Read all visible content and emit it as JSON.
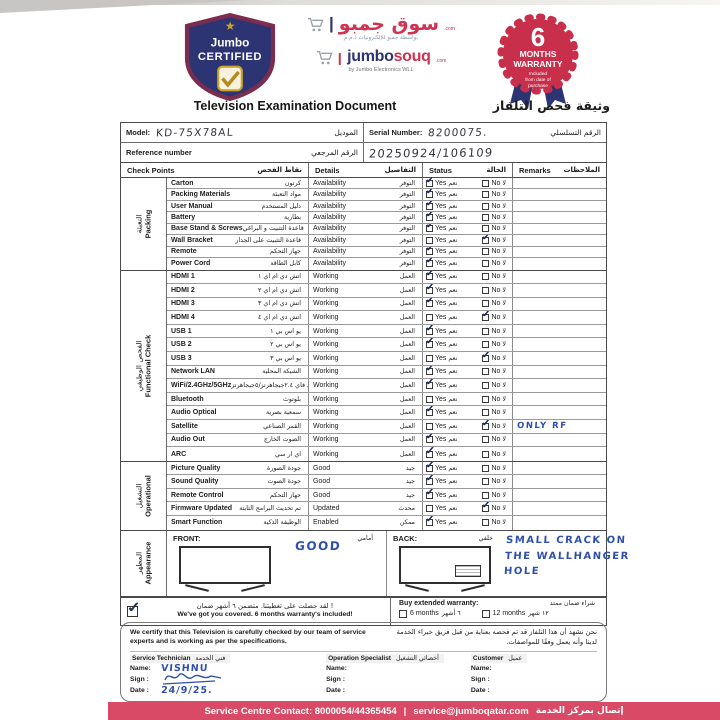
{
  "header": {
    "certified_badge": {
      "line1": "Jumbo",
      "line2": "CERTIFIED",
      "star_icon": "★",
      "check_icon": "✓"
    },
    "souq_logo": {
      "arabic": "سوق جمبو",
      "dotcom": ".com",
      "arabic_sub": "بواسطة جمبو للإلكترونيات ذ.م.م",
      "en_jumbo": "jumbo",
      "en_souq": "souq",
      "byline": "by Jumbo Electronics WLL"
    },
    "warranty_badge": {
      "number": "6",
      "line1": "MONTHS",
      "line2": "WARRANTY",
      "sub1": "Included",
      "sub2": "from date of",
      "sub3": "purchase"
    },
    "title_en": "Television Examination Document",
    "title_ar": "وثيقة فحص التلفاز"
  },
  "info": {
    "model_label_en": "Model:",
    "model_value": "KD-75X78AL",
    "model_label_ar": "الموديل",
    "serial_label_en": "Serial Number:",
    "serial_value": "8200075.",
    "serial_label_ar": "الرقم التسلسلي",
    "reference_label_en": "Reference number",
    "reference_label_ar": "الرقم المرجعي",
    "reference_value": "20250924/106109"
  },
  "table": {
    "headers": {
      "check_points_en": "Check Points",
      "check_points_ar": "نقاط الفحص",
      "details_en": "Details",
      "details_ar": "التفاصيل",
      "status_en": "Status",
      "status_ar": "الحالة",
      "remarks_en": "Remarks",
      "remarks_ar": "الملاحظات"
    },
    "status_labels": {
      "yes_en": "Yes",
      "yes_ar": "نعم",
      "no_en": "No",
      "no_ar": "لا"
    },
    "sections": [
      {
        "key": "packing",
        "name_ar": "التعبئة",
        "name_en": "Packing",
        "rh": "rh-p",
        "rows": [
          {
            "en": "Carton",
            "ar": "كرتون",
            "det_en": "Availability",
            "det_ar": "التوفر",
            "status": "yes",
            "remark": ""
          },
          {
            "en": "Packing Materials",
            "ar": "مواد التعبئة",
            "det_en": "Availability",
            "det_ar": "التوفر",
            "status": "yes",
            "remark": ""
          },
          {
            "en": "User Manual",
            "ar": "دليل المستخدم",
            "det_en": "Availability",
            "det_ar": "التوفر",
            "status": "yes",
            "remark": ""
          },
          {
            "en": "Battery",
            "ar": "بطارية",
            "det_en": "Availability",
            "det_ar": "التوفر",
            "status": "yes",
            "remark": ""
          },
          {
            "en": "Base Stand & Screws",
            "ar": "قاعدة التثبيت و البراغي",
            "det_en": "Availability",
            "det_ar": "التوفر",
            "status": "yes",
            "remark": ""
          },
          {
            "en": "Wall Bracket",
            "ar": "قاعدة التثبيت على الجدار",
            "det_en": "Availability",
            "det_ar": "التوفر",
            "status": "no",
            "remark": ""
          },
          {
            "en": "Remote",
            "ar": "جهاز التحكم",
            "det_en": "Availability",
            "det_ar": "التوفر",
            "status": "yes",
            "remark": ""
          },
          {
            "en": "Power Cord",
            "ar": "كابل الطاقة",
            "det_en": "Availability",
            "det_ar": "التوفر",
            "status": "yes",
            "remark": ""
          }
        ]
      },
      {
        "key": "functional-check",
        "name_ar": "الفحص الوظيفي",
        "name_en": "Functional Check",
        "rh": "rh-f",
        "rows": [
          {
            "en": "HDMI 1",
            "ar": "اتش دي ام اي ١",
            "det_en": "Working",
            "det_ar": "العمل",
            "status": "yes",
            "remark": ""
          },
          {
            "en": "HDMI 2",
            "ar": "اتش دي ام اي ٢",
            "det_en": "Working",
            "det_ar": "العمل",
            "status": "yes",
            "remark": ""
          },
          {
            "en": "HDMI 3",
            "ar": "اتش دي ام اي ٣",
            "det_en": "Working",
            "det_ar": "العمل",
            "status": "yes",
            "remark": ""
          },
          {
            "en": "HDMI 4",
            "ar": "اتش دي ام اي ٤",
            "det_en": "Working",
            "det_ar": "العمل",
            "status": "no",
            "remark": ""
          },
          {
            "en": "USB 1",
            "ar": "يو اس بي ١",
            "det_en": "Working",
            "det_ar": "العمل",
            "status": "yes",
            "remark": ""
          },
          {
            "en": "USB 2",
            "ar": "يو اس بي ٢",
            "det_en": "Working",
            "det_ar": "العمل",
            "status": "yes",
            "remark": ""
          },
          {
            "en": "USB 3",
            "ar": "يو اس بي ٣",
            "det_en": "Working",
            "det_ar": "العمل",
            "status": "no",
            "remark": ""
          },
          {
            "en": "Network LAN",
            "ar": "الشبكة المحلية",
            "det_en": "Working",
            "det_ar": "العمل",
            "status": "yes",
            "remark": ""
          },
          {
            "en": "WiFi/2.4GHz/5GHz",
            "ar": "الواي فاي ٢.٤جيجاهرتز/٥جيجاهرتز",
            "det_en": "Working",
            "det_ar": "العمل",
            "status": "yes",
            "remark": ""
          },
          {
            "en": "Bluetooth",
            "ar": "بلوتوث",
            "det_en": "Working",
            "det_ar": "العمل",
            "status": "none",
            "remark": ""
          },
          {
            "en": "Audio Optical",
            "ar": "سمعية بصرية",
            "det_en": "Working",
            "det_ar": "العمل",
            "status": "yes",
            "remark": ""
          },
          {
            "en": "Satellite",
            "ar": "القمر الصناعي",
            "det_en": "Working",
            "det_ar": "العمل",
            "status": "no",
            "remark": "ONLY RF"
          },
          {
            "en": "Audio Out",
            "ar": "الصوت الخارج",
            "det_en": "Working",
            "det_ar": "العمل",
            "status": "yes",
            "remark": ""
          },
          {
            "en": "ARC",
            "ar": "اي ار سي",
            "det_en": "Working",
            "det_ar": "العمل",
            "status": "yes",
            "remark": ""
          }
        ]
      },
      {
        "key": "operational",
        "name_ar": "التشغيل",
        "name_en": "Operational",
        "rh": "rh-o",
        "rows": [
          {
            "en": "Picture Quality",
            "ar": "جودة الصورة",
            "det_en": "Good",
            "det_ar": "جيد",
            "status": "yes",
            "remark": ""
          },
          {
            "en": "Sound Quality",
            "ar": "جودة الصوت",
            "det_en": "Good",
            "det_ar": "جيد",
            "status": "yes",
            "remark": ""
          },
          {
            "en": "Remote Control",
            "ar": "جهاز التحكم",
            "det_en": "Good",
            "det_ar": "جيد",
            "status": "yes",
            "remark": ""
          },
          {
            "en": "Firmware Updated",
            "ar": "تم تحديث البرامج الثابتة",
            "det_en": "Updated",
            "det_ar": "محدث",
            "status": "no",
            "remark": ""
          },
          {
            "en": "Smart Function",
            "ar": "الوظيفة الذكية",
            "det_en": "Enabled",
            "det_ar": "ممكن",
            "status": "yes",
            "remark": ""
          }
        ]
      }
    ]
  },
  "appearance": {
    "name_ar": "المظهر",
    "name_en": "Appearance",
    "front_label_en": "FRONT:",
    "front_label_ar": "أمامي",
    "front_note": "GOOD",
    "back_label_en": "BACK:",
    "back_label_ar": "خلفي",
    "back_note_line1": "SMALL CRACK ON",
    "back_note_line2": "THE WALLHANGER",
    "back_note_line3": "HOLE"
  },
  "warranty": {
    "included_checked": true,
    "included_ar": "لقد حصلت على تغطيتنا. متضمن ٦ أشهر ضمان !",
    "included_en": "We've got you covered. 6 months warranty's included!",
    "buy_label_en": "Buy extended warranty:",
    "buy_label_ar": "شراء ضمان ممتد",
    "option_6_en": "6 months",
    "option_6_ar": "٦ أشهر",
    "option_12_en": "12 months",
    "option_12_ar": "١٢ شهر"
  },
  "certification": {
    "text_en": "We certify that this Television is carefully checked by our team of service experts and is working as per the specifications.",
    "text_ar": "نحن نشهد أن هذا التلفاز قد تم فحصه بعناية من قبل فريق خبراء الخدمة لدينا وأنه يعمل وفقًا للمواصفات.",
    "field_labels": {
      "name": "Name:",
      "sign": "Sign :",
      "date": "Date :"
    },
    "signatories": [
      {
        "role_en": "Service Technician",
        "role_ar": "فني الخدمة",
        "name": "VISHNU",
        "date": "24/9/25."
      },
      {
        "role_en": "Operation Specialist",
        "role_ar": "أخصائي التشغيل",
        "name": "",
        "date": ""
      },
      {
        "role_en": "Customer",
        "role_ar": "عميل",
        "name": "",
        "date": ""
      }
    ]
  },
  "footer": {
    "contact": "Service Centre Contact: 8000054/44365454",
    "separator": "|",
    "email": "service@jumboqatar.com",
    "label_ar": "إتصال بمركز الخدمة"
  },
  "colors": {
    "brand_navy": "#2d3474",
    "brand_maroon": "#7b2d4f",
    "brand_red": "#cf3350",
    "footer_bar": "#d84a66",
    "ink_blue": "#2f4fae",
    "ink_dark": "#34343d",
    "gold": "#c9a227"
  }
}
